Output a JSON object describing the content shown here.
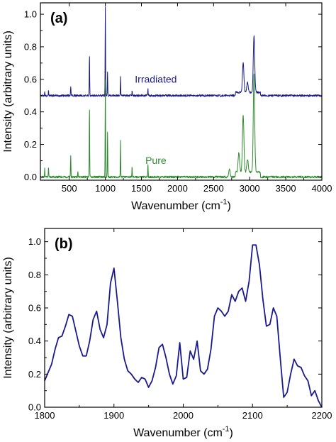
{
  "chart_data": [
    {
      "type": "line",
      "panel_label": "(a)",
      "xlabel": "Wavenumber (cm",
      "xlabel_sup": "-1",
      "xlabel_close": ")",
      "ylabel": "Intensity (arbitrary units)",
      "xlim": [
        100,
        4000
      ],
      "ylim": [
        -0.02,
        1.07
      ],
      "xticks": [
        500,
        1000,
        1500,
        2000,
        2500,
        3000,
        3500,
        4000
      ],
      "yticks": [
        0.0,
        0.2,
        0.4,
        0.6,
        0.8,
        1.0
      ],
      "ytick_labels": [
        "0.0",
        "0.2",
        "0.4",
        "0.6",
        "0.8",
        "1.0"
      ],
      "series": [
        {
          "name": "Irradiated",
          "color": "#1a1a8c",
          "baseline": 0.5,
          "x": [
            160,
            212,
            520,
            780,
            1000,
            1030,
            1210,
            1370,
            1590,
            2910,
            2970,
            3060
          ],
          "peak_heights": [
            0.02,
            0.03,
            0.06,
            0.25,
            0.54,
            0.15,
            0.12,
            0.03,
            0.04,
            0.18,
            0.06,
            0.35
          ]
        },
        {
          "name": "Pure",
          "color": "#2e8b2e",
          "baseline": 0.0,
          "x": [
            160,
            212,
            520,
            620,
            780,
            1000,
            1030,
            1210,
            1370,
            1590,
            2720,
            2850,
            2910,
            2970,
            3060
          ],
          "peak_heights": [
            0.05,
            0.06,
            0.13,
            0.04,
            0.44,
            0.6,
            0.28,
            0.22,
            0.06,
            0.08,
            0.05,
            0.12,
            0.35,
            0.08,
            0.61
          ]
        }
      ]
    },
    {
      "type": "line",
      "panel_label": "(b)",
      "xlabel": "Wavenumber (cm",
      "xlabel_sup": "-1",
      "xlabel_close": ")",
      "ylabel": "Intensity (arbitrary units)",
      "xlim": [
        1800,
        2200
      ],
      "ylim": [
        0.0,
        1.08
      ],
      "xticks": [
        1800,
        1900,
        2000,
        2100,
        2200
      ],
      "yticks": [
        0.0,
        0.2,
        0.4,
        0.6,
        0.8,
        1.0
      ],
      "ytick_labels": [
        "0.0",
        "0.2",
        "0.4",
        "0.6",
        "0.8",
        "1.0"
      ],
      "series": [
        {
          "color": "#1a1a8c",
          "x": [
            1800,
            1805,
            1810,
            1815,
            1820,
            1825,
            1830,
            1835,
            1840,
            1845,
            1850,
            1855,
            1860,
            1865,
            1870,
            1875,
            1880,
            1885,
            1890,
            1895,
            1900,
            1905,
            1910,
            1915,
            1920,
            1925,
            1930,
            1935,
            1940,
            1945,
            1950,
            1955,
            1960,
            1965,
            1970,
            1975,
            1980,
            1985,
            1990,
            1995,
            2000,
            2005,
            2010,
            2015,
            2020,
            2025,
            2030,
            2035,
            2040,
            2045,
            2050,
            2055,
            2060,
            2065,
            2070,
            2075,
            2080,
            2085,
            2090,
            2095,
            2100,
            2105,
            2110,
            2115,
            2120,
            2125,
            2130,
            2135,
            2140,
            2145,
            2150,
            2155,
            2160,
            2165,
            2170,
            2175,
            2180,
            2185,
            2190,
            2195,
            2200
          ],
          "y": [
            0.16,
            0.21,
            0.26,
            0.35,
            0.42,
            0.43,
            0.49,
            0.56,
            0.55,
            0.46,
            0.37,
            0.31,
            0.31,
            0.4,
            0.53,
            0.58,
            0.47,
            0.42,
            0.5,
            0.75,
            0.84,
            0.64,
            0.42,
            0.29,
            0.22,
            0.2,
            0.17,
            0.15,
            0.18,
            0.17,
            0.12,
            0.16,
            0.24,
            0.36,
            0.38,
            0.3,
            0.2,
            0.14,
            0.19,
            0.39,
            0.17,
            0.18,
            0.34,
            0.29,
            0.4,
            0.22,
            0.2,
            0.23,
            0.35,
            0.55,
            0.6,
            0.58,
            0.55,
            0.58,
            0.68,
            0.64,
            0.7,
            0.72,
            0.64,
            0.76,
            0.98,
            0.98,
            0.86,
            0.65,
            0.49,
            0.5,
            0.6,
            0.55,
            0.3,
            0.06,
            0.09,
            0.2,
            0.29,
            0.25,
            0.24,
            0.19,
            0.16,
            0.07,
            0.1,
            0.04,
            0.0
          ]
        }
      ]
    }
  ]
}
